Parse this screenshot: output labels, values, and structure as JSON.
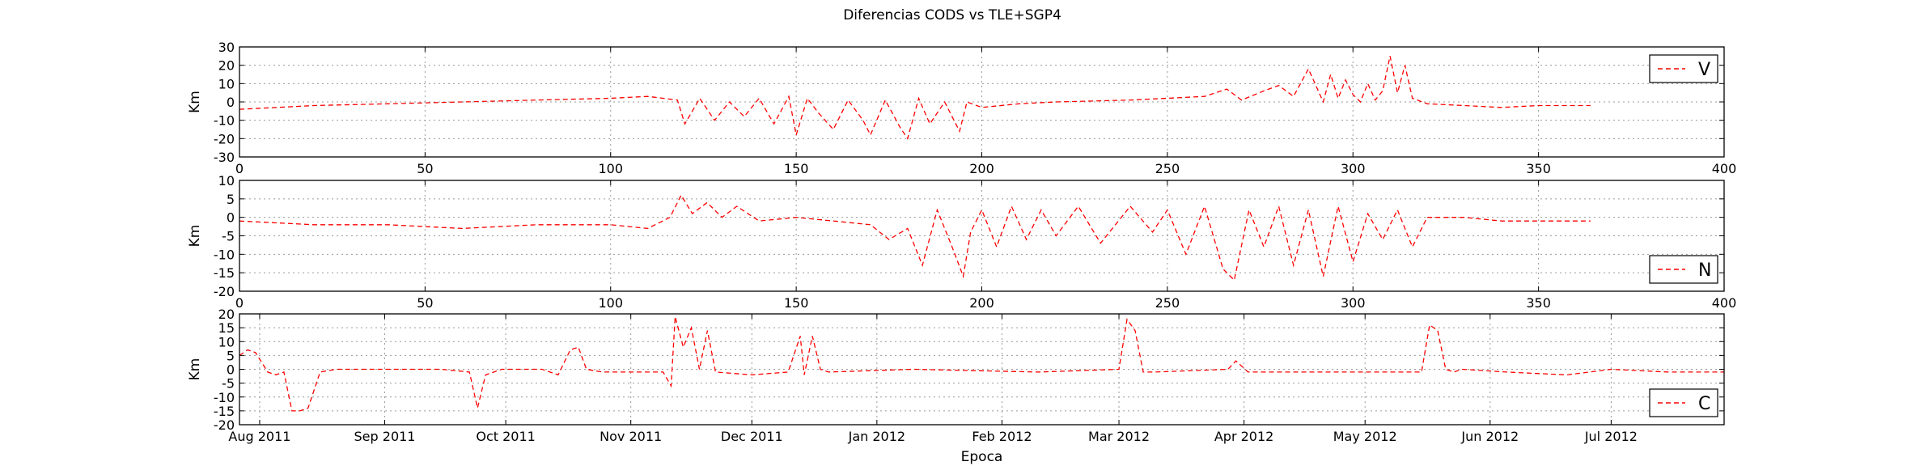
{
  "chart_data": {
    "type": "line",
    "title": "Diferencias CODS vs TLE+SGP4",
    "subplots": [
      {
        "id": "V",
        "ylabel": "Km",
        "xlim": [
          0,
          400
        ],
        "ylim": [
          -30,
          30
        ],
        "xticks": [
          0,
          50,
          100,
          150,
          200,
          250,
          300,
          350,
          400
        ],
        "yticks": [
          -30,
          -20,
          -10,
          0,
          10,
          20,
          30
        ],
        "grid": true,
        "legend": {
          "label": "V",
          "placement": "top-right"
        },
        "color": "#ff0000",
        "x": [
          0,
          20,
          40,
          60,
          80,
          100,
          110,
          118,
          120,
          124,
          128,
          132,
          136,
          140,
          144,
          148,
          150,
          153,
          156,
          160,
          164,
          168,
          170,
          174,
          178,
          180,
          183,
          186,
          190,
          194,
          196,
          200,
          210,
          220,
          240,
          260,
          266,
          270,
          276,
          280,
          284,
          288,
          292,
          294,
          296,
          298,
          300,
          302,
          304,
          306,
          308,
          310,
          312,
          314,
          316,
          320,
          330,
          340,
          350,
          364
        ],
        "y": [
          -4,
          -2,
          -1,
          0,
          1,
          2,
          3,
          1,
          -12,
          2,
          -10,
          0,
          -8,
          2,
          -12,
          3,
          -18,
          2,
          -6,
          -15,
          1,
          -10,
          -18,
          1,
          -14,
          -20,
          2,
          -12,
          0,
          -16,
          0,
          -3,
          -1,
          0,
          1,
          3,
          7,
          1,
          6,
          9,
          3,
          18,
          0,
          15,
          2,
          12,
          4,
          0,
          10,
          1,
          6,
          25,
          5,
          20,
          2,
          -1,
          -2,
          -3,
          -2,
          -2
        ]
      },
      {
        "id": "N",
        "ylabel": "Km",
        "xlim": [
          0,
          400
        ],
        "ylim": [
          -20,
          10
        ],
        "xticks": [
          0,
          50,
          100,
          150,
          200,
          250,
          300,
          350,
          400
        ],
        "yticks": [
          -20,
          -15,
          -10,
          -5,
          0,
          5,
          10
        ],
        "grid": true,
        "legend": {
          "label": "N",
          "placement": "bottom-right"
        },
        "color": "#ff0000",
        "x": [
          0,
          20,
          40,
          60,
          80,
          100,
          110,
          116,
          119,
          122,
          126,
          130,
          134,
          140,
          150,
          160,
          170,
          175,
          180,
          184,
          188,
          192,
          195,
          197,
          200,
          204,
          208,
          212,
          216,
          220,
          226,
          232,
          240,
          246,
          250,
          255,
          260,
          265,
          268,
          272,
          276,
          280,
          284,
          288,
          292,
          296,
          300,
          304,
          308,
          312,
          316,
          320,
          330,
          340,
          350,
          364
        ],
        "y": [
          -1,
          -2,
          -2,
          -3,
          -2,
          -2,
          -3,
          0,
          6,
          1,
          4,
          0,
          3,
          -1,
          0,
          -1,
          -2,
          -6,
          -3,
          -13,
          2,
          -8,
          -16,
          -4,
          2,
          -8,
          3,
          -6,
          2,
          -5,
          3,
          -7,
          3,
          -4,
          2,
          -10,
          3,
          -14,
          -17,
          2,
          -8,
          3,
          -13,
          2,
          -16,
          3,
          -12,
          1,
          -6,
          2,
          -8,
          0,
          0,
          -1,
          -1,
          -1
        ]
      },
      {
        "id": "C",
        "ylabel": "Km",
        "xlabel": "Epoca",
        "xlim": [
          "2011-07-27",
          "2012-07-29"
        ],
        "ylim": [
          -20,
          20
        ],
        "xtick_labels": [
          "Aug 2011",
          "Sep 2011",
          "Oct 2011",
          "Nov 2011",
          "Dec 2011",
          "Jan 2012",
          "Feb 2012",
          "Mar 2012",
          "Apr 2012",
          "May 2012",
          "Jun 2012",
          "Jul 2012"
        ],
        "xtick_dates": [
          "2011-08-01",
          "2011-09-01",
          "2011-10-01",
          "2011-11-01",
          "2011-12-01",
          "2012-01-01",
          "2012-02-01",
          "2012-03-01",
          "2012-04-01",
          "2012-05-01",
          "2012-06-01",
          "2012-07-01"
        ],
        "yticks": [
          -20,
          -15,
          -10,
          -5,
          0,
          5,
          10,
          15,
          20
        ],
        "grid": true,
        "legend": {
          "label": "C",
          "placement": "bottom-right"
        },
        "color": "#ff0000",
        "x": [
          "2011-07-27",
          "2011-07-29",
          "2011-07-31",
          "2011-08-03",
          "2011-08-05",
          "2011-08-07",
          "2011-08-09",
          "2011-08-11",
          "2011-08-13",
          "2011-08-16",
          "2011-08-20",
          "2011-09-01",
          "2011-09-15",
          "2011-09-22",
          "2011-09-24",
          "2011-09-26",
          "2011-09-30",
          "2011-10-10",
          "2011-10-14",
          "2011-10-17",
          "2011-10-19",
          "2011-10-21",
          "2011-10-25",
          "2011-11-05",
          "2011-11-09",
          "2011-11-11",
          "2011-11-12",
          "2011-11-14",
          "2011-11-16",
          "2011-11-18",
          "2011-11-20",
          "2011-11-22",
          "2011-12-01",
          "2011-12-10",
          "2011-12-13",
          "2011-12-14",
          "2011-12-16",
          "2011-12-18",
          "2011-12-20",
          "2012-01-10",
          "2012-02-10",
          "2012-03-01",
          "2012-03-03",
          "2012-03-05",
          "2012-03-07",
          "2012-03-10",
          "2012-03-28",
          "2012-03-30",
          "2012-04-02",
          "2012-05-01",
          "2012-05-15",
          "2012-05-17",
          "2012-05-19",
          "2012-05-21",
          "2012-05-23",
          "2012-05-25",
          "2012-06-05",
          "2012-06-20",
          "2012-07-01",
          "2012-07-15",
          "2012-07-29"
        ],
        "y": [
          5,
          7,
          6,
          -1,
          -2,
          -1,
          -15,
          -15,
          -14,
          -1,
          0,
          0,
          0,
          -1,
          -14,
          -2,
          0,
          0,
          -2,
          7,
          8,
          0,
          -1,
          -1,
          -1,
          -6,
          19,
          8,
          15,
          0,
          14,
          -1,
          -2,
          -1,
          12,
          -2,
          12,
          0,
          -1,
          0,
          -1,
          0,
          18,
          14,
          -1,
          -1,
          0,
          3,
          -1,
          -1,
          -1,
          16,
          14,
          0,
          -1,
          0,
          -1,
          -2,
          0,
          -1,
          -1
        ]
      }
    ]
  }
}
